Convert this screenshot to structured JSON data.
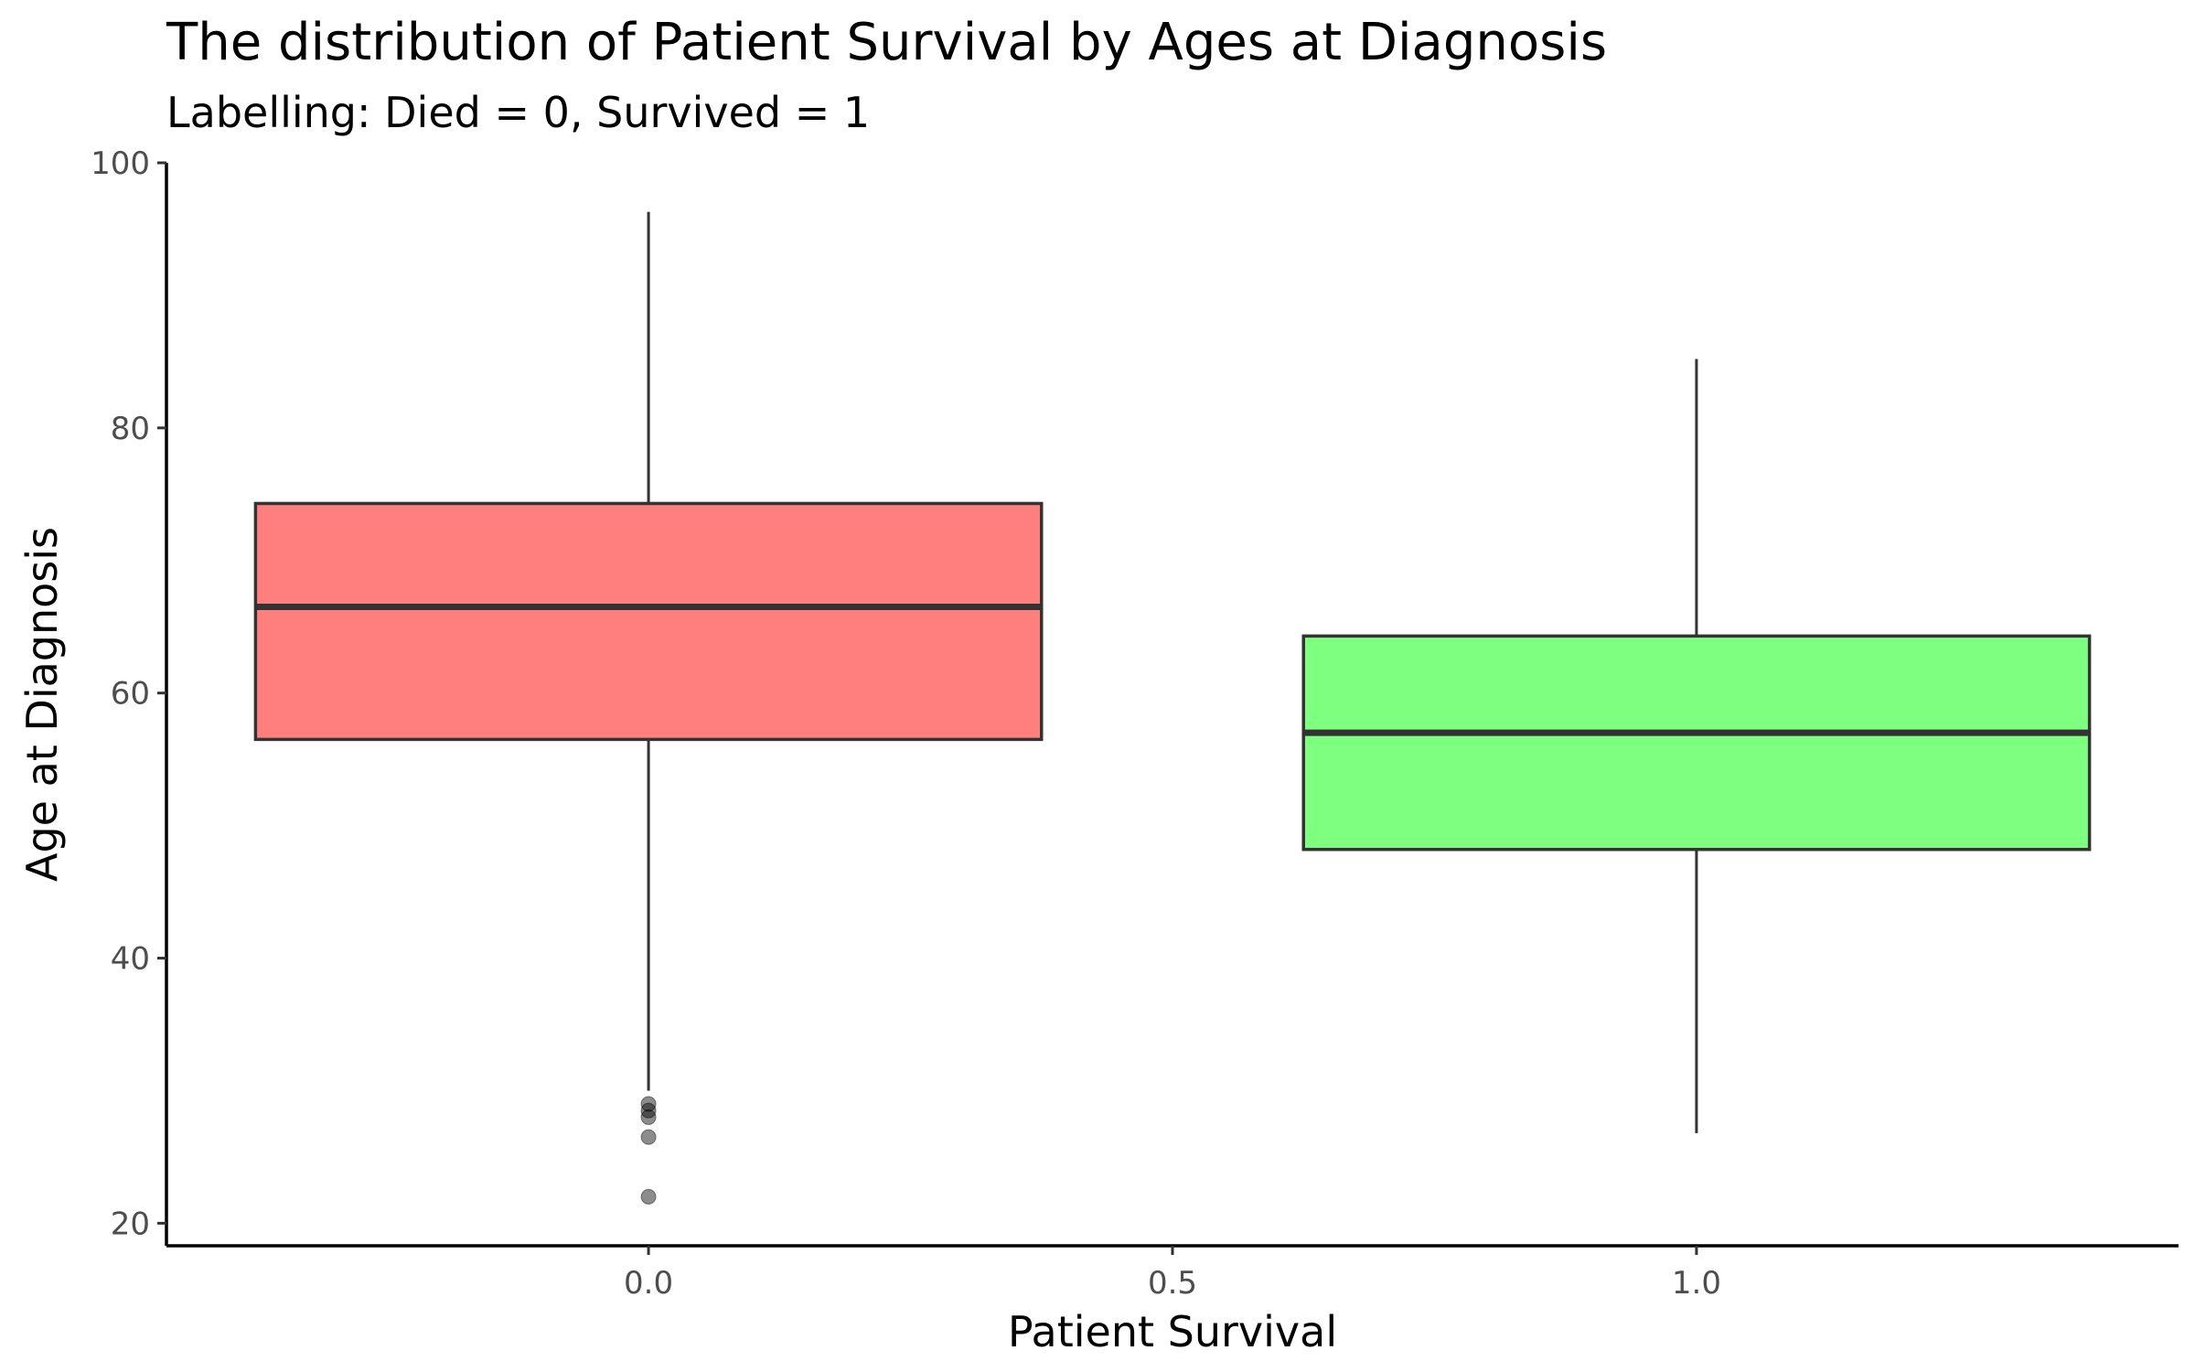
{
  "chart_data": {
    "type": "box",
    "title": "The distribution of Patient Survival by Ages at Diagnosis",
    "subtitle": "Labelling: Died = 0, Survived = 1",
    "xlabel": "Patient Survival",
    "ylabel": "Age at Diagnosis",
    "xlim": [
      -0.46,
      1.46
    ],
    "ylim": [
      18.3,
      100
    ],
    "x_ticks": [
      0.0,
      0.5,
      1.0
    ],
    "x_tick_labels": [
      "0.0",
      "0.5",
      "1.0"
    ],
    "y_ticks": [
      20,
      40,
      60,
      80,
      100
    ],
    "y_tick_labels": [
      "20",
      "40",
      "60",
      "80",
      "100"
    ],
    "grid": false,
    "legend": "none",
    "boxes": [
      {
        "x": 0,
        "color": "#ff7f7f",
        "whisker_low": 30.0,
        "q1": 56.5,
        "median": 66.5,
        "q3": 74.3,
        "whisker_high": 96.3,
        "outliers": [
          29.0,
          28.5,
          28.0,
          26.5,
          22.0
        ]
      },
      {
        "x": 1,
        "color": "#7fff7f",
        "whisker_low": 26.8,
        "q1": 48.2,
        "median": 57.0,
        "q3": 64.3,
        "whisker_high": 85.2,
        "outliers": []
      }
    ]
  }
}
